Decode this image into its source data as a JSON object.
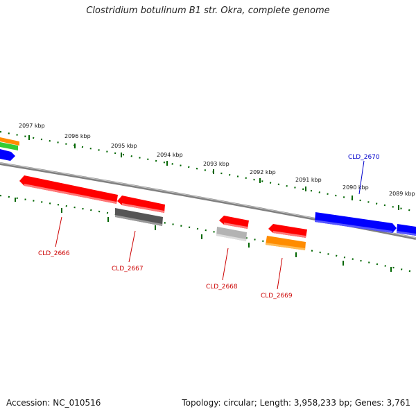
{
  "title": "Clostridium botulinum B1 str. Okra, complete genome",
  "footer": {
    "accession": "Accession: NC_010516",
    "topology": "Topology: circular; Length: 3,958,233 bp; Genes: 3,761"
  },
  "colors": {
    "forward_gene": "#0000ff",
    "reverse_gene": "#ff0000",
    "tick": "#006600",
    "backbone": "#808080",
    "pseudo_dark": "#555555",
    "pseudo_light": "#b3b3b3",
    "rna_orange": "#ff8c00",
    "rna_green": "#33cc33"
  },
  "kbp_labels": [
    "2097 kbp",
    "2096 kbp",
    "2095 kbp",
    "2094 kbp",
    "2093 kbp",
    "2092 kbp",
    "2091 kbp",
    "2090 kbp",
    "2089 kbp"
  ],
  "genes": [
    {
      "id": "CLD_2666",
      "strand": "reverse",
      "color": "#ff0000"
    },
    {
      "id": "CLD_2667",
      "strand": "reverse",
      "color": "#ff0000"
    },
    {
      "id": "CLD_2668",
      "strand": "reverse",
      "color": "#ff0000"
    },
    {
      "id": "CLD_2669",
      "strand": "reverse",
      "color": "#ff0000"
    },
    {
      "id": "CLD_2670",
      "strand": "forward",
      "color": "#0000ff"
    }
  ]
}
